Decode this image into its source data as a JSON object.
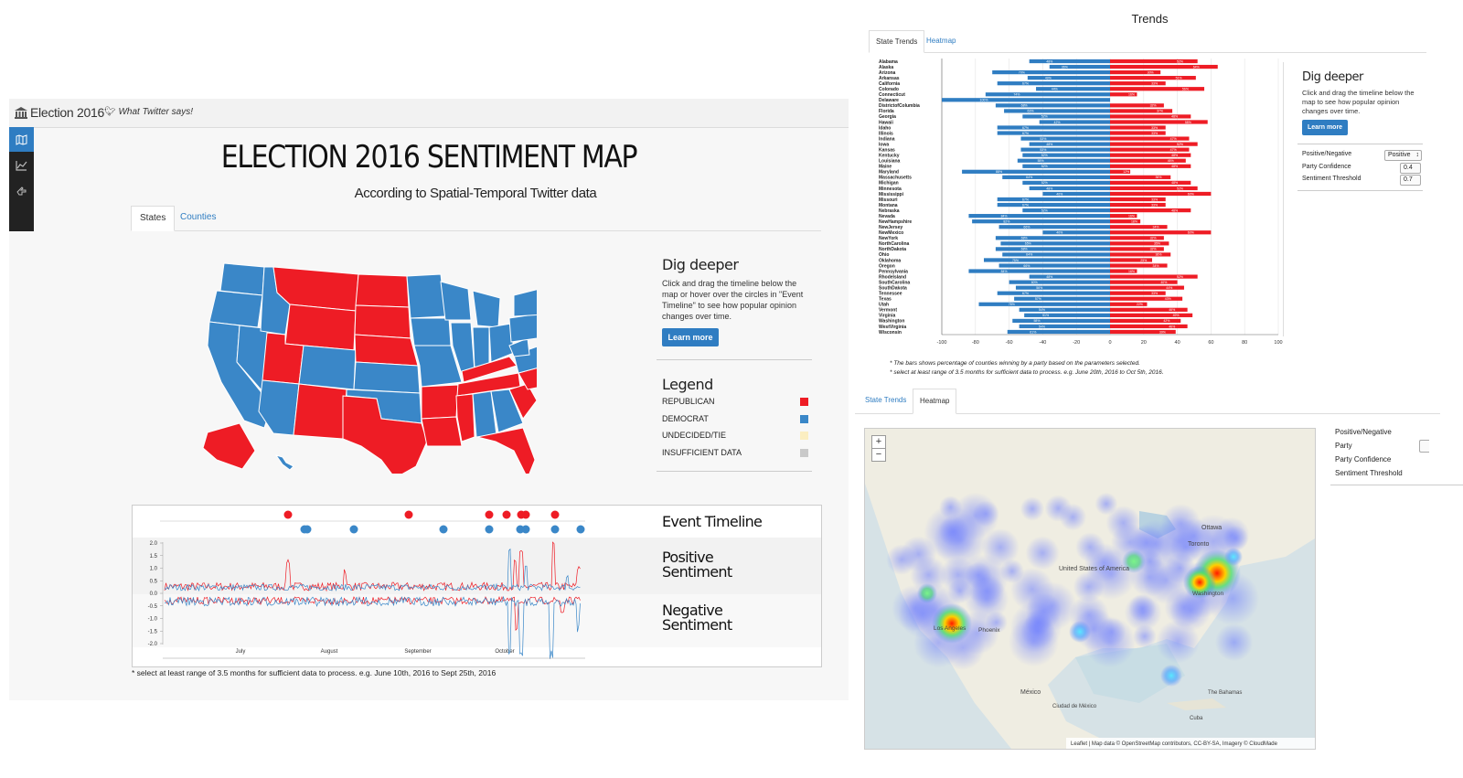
{
  "app": {
    "brand": "Election 2016",
    "twitter_link": "What Twitter says!",
    "title": "ELECTION 2016 SENTIMENT MAP",
    "subtitle": "According to Spatial-Temporal Twitter data",
    "tabs": [
      {
        "label": "States"
      },
      {
        "label": "Counties"
      }
    ],
    "dig": {
      "title": "Dig deeper",
      "text": "Click and drag the timeline below the map or hover over the circles in \"Event Timeline\" to see how popular opinion changes over time.",
      "button": "Learn more"
    },
    "legend": {
      "title": "Legend",
      "items": [
        {
          "label": "REPUBLICAN",
          "color": "#ee1c25"
        },
        {
          "label": "DEMOCRAT",
          "color": "#3a87c8"
        },
        {
          "label": "UNDECIDED/TIE",
          "color": "#fbeec1"
        },
        {
          "label": "INSUFFICIENT DATA",
          "color": "#c9c9c9"
        }
      ]
    },
    "timeline": {
      "event_title": "Event Timeline",
      "positive_title": "Positive Sentiment",
      "negative_title": "Negative Sentiment",
      "y_ticks": [
        "2.0",
        "1.5",
        "1.0",
        "0.5",
        "0.0",
        "-0.5",
        "-1.0",
        "-1.5",
        "-2.0"
      ],
      "x_ticks": [
        "July",
        "August",
        "September",
        "October"
      ]
    },
    "footnote": "* select at least range of 3.5 months for sufficient data to process. e.g. June 10th, 2016 to Sept 25th, 2016"
  },
  "trends": {
    "title": "Trends",
    "tabs": [
      {
        "label": "State Trends"
      },
      {
        "label": "Heatmap"
      }
    ],
    "dig": {
      "title": "Dig deeper",
      "text": "Click and drag the timeline below the map to see how popular opinion changes over time.",
      "button": "Learn more"
    },
    "controls": [
      {
        "label": "Positive/Negative",
        "value": "Positive"
      },
      {
        "label": "Party Confidence",
        "value": "0.4"
      },
      {
        "label": "Sentiment Threshold",
        "value": "0.7"
      }
    ],
    "notes": [
      "* The bars shows percentage of counties winning by a party based on the parameters selected.",
      "* select at least range of 3.5 months for sufficient data to process. e.g. June 20th, 2016 to Oct 5th, 2016."
    ]
  },
  "chart_data": {
    "type": "bar",
    "orientation": "horizontal-diverging",
    "xlim": [
      -100,
      100
    ],
    "x_ticks": [
      "-100",
      "-80",
      "-60",
      "-40",
      "-20",
      "0",
      "20",
      "40",
      "60",
      "80",
      "100"
    ],
    "series": [
      {
        "color": "#2f7dc2",
        "values": [
          -48,
          -36,
          -70,
          -49,
          -67,
          -44,
          -74,
          -100,
          -68,
          -63,
          -52,
          -42,
          -67,
          -67,
          -53,
          -48,
          -53,
          -52,
          -55,
          -52,
          -88,
          -64,
          -52,
          -48,
          -40,
          -67,
          -67,
          -52,
          -84,
          -82,
          -66,
          -40,
          -68,
          -65,
          -68,
          -64,
          -75,
          -66,
          -84,
          -48,
          -60,
          -56,
          -67,
          -57,
          -78,
          -54,
          -51,
          -58,
          -54,
          -61
        ]
      },
      {
        "color": "#ee1c25",
        "values": [
          52,
          64,
          30,
          51,
          33,
          56,
          16,
          0,
          32,
          37,
          48,
          58,
          33,
          33,
          47,
          52,
          47,
          48,
          45,
          48,
          12,
          36,
          48,
          52,
          60,
          33,
          33,
          48,
          16,
          18,
          34,
          60,
          32,
          35,
          32,
          36,
          25,
          34,
          16,
          52,
          40,
          44,
          33,
          43,
          22,
          46,
          49,
          42,
          46,
          39
        ]
      }
    ],
    "categories": [
      "Alabama",
      "Alaska",
      "Arizona",
      "Arkansas",
      "California",
      "Colorado",
      "Connecticut",
      "Delaware",
      "DistrictofColumbia",
      "Florida",
      "Georgia",
      "Hawaii",
      "Idaho",
      "Illinois",
      "Indiana",
      "Iowa",
      "Kansas",
      "Kentucky",
      "Louisiana",
      "Maine",
      "Maryland",
      "Massachusetts",
      "Michigan",
      "Minnesota",
      "Mississippi",
      "Missouri",
      "Montana",
      "Nebraska",
      "Nevada",
      "NewHampshire",
      "NewJersey",
      "NewMexico",
      "NewYork",
      "NorthCarolina",
      "NorthDakota",
      "Ohio",
      "Oklahoma",
      "Oregon",
      "Pennsylvania",
      "RhodeIsland",
      "SouthCarolina",
      "SouthDakota",
      "Tennessee",
      "Texas",
      "Utah",
      "Vermont",
      "Virginia",
      "Washington",
      "WestVirginia",
      "Wisconsin"
    ]
  },
  "heatmap": {
    "tabs": [
      {
        "label": "State Trends"
      },
      {
        "label": "Heatmap"
      }
    ],
    "controls": [
      {
        "label": "Positive/Negative"
      },
      {
        "label": "Party"
      },
      {
        "label": "Party Confidence"
      },
      {
        "label": "Sentiment Threshold"
      }
    ],
    "zoom_in": "+",
    "zoom_out": "−",
    "places": [
      {
        "label": "Ottawa"
      },
      {
        "label": "Toronto"
      },
      {
        "label": "United States of America"
      },
      {
        "label": "Washington"
      },
      {
        "label": "Los Angeles"
      },
      {
        "label": "Phoenix"
      },
      {
        "label": "México"
      },
      {
        "label": "Ciudad de México"
      },
      {
        "label": "Cuba"
      },
      {
        "label": "The Bahamas"
      }
    ],
    "attribution": "Leaflet | Map data © OpenStreetMap contributors, CC-BY-SA, Imagery © CloudMade"
  }
}
